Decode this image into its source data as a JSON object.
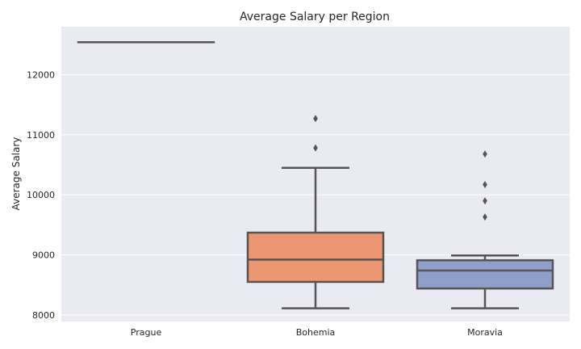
{
  "chart_data": {
    "type": "box",
    "title": "Average Salary per Region",
    "xlabel": "",
    "ylabel": "Average Salary",
    "ylim": [
      7890,
      12800
    ],
    "yticks": [
      8000,
      9000,
      10000,
      11000,
      12000
    ],
    "grid": true,
    "categories": [
      "Prague",
      "Bohemia",
      "Moravia"
    ],
    "boxes": [
      {
        "name": "Prague",
        "color": "#66c2a5",
        "q1": 12541,
        "median": 12541,
        "q3": 12541,
        "whisker_low": 12541,
        "whisker_high": 12541,
        "outliers": []
      },
      {
        "name": "Bohemia",
        "color": "#ec9672",
        "q1": 8550,
        "median": 8920,
        "q3": 9370,
        "whisker_low": 8110,
        "whisker_high": 10450,
        "outliers": [
          10780,
          11270
        ]
      },
      {
        "name": "Moravia",
        "color": "#8ea0c9",
        "q1": 8440,
        "median": 8740,
        "q3": 8910,
        "whisker_low": 8110,
        "whisker_high": 8990,
        "outliers": [
          9630,
          9900,
          10170,
          10680
        ]
      }
    ]
  }
}
